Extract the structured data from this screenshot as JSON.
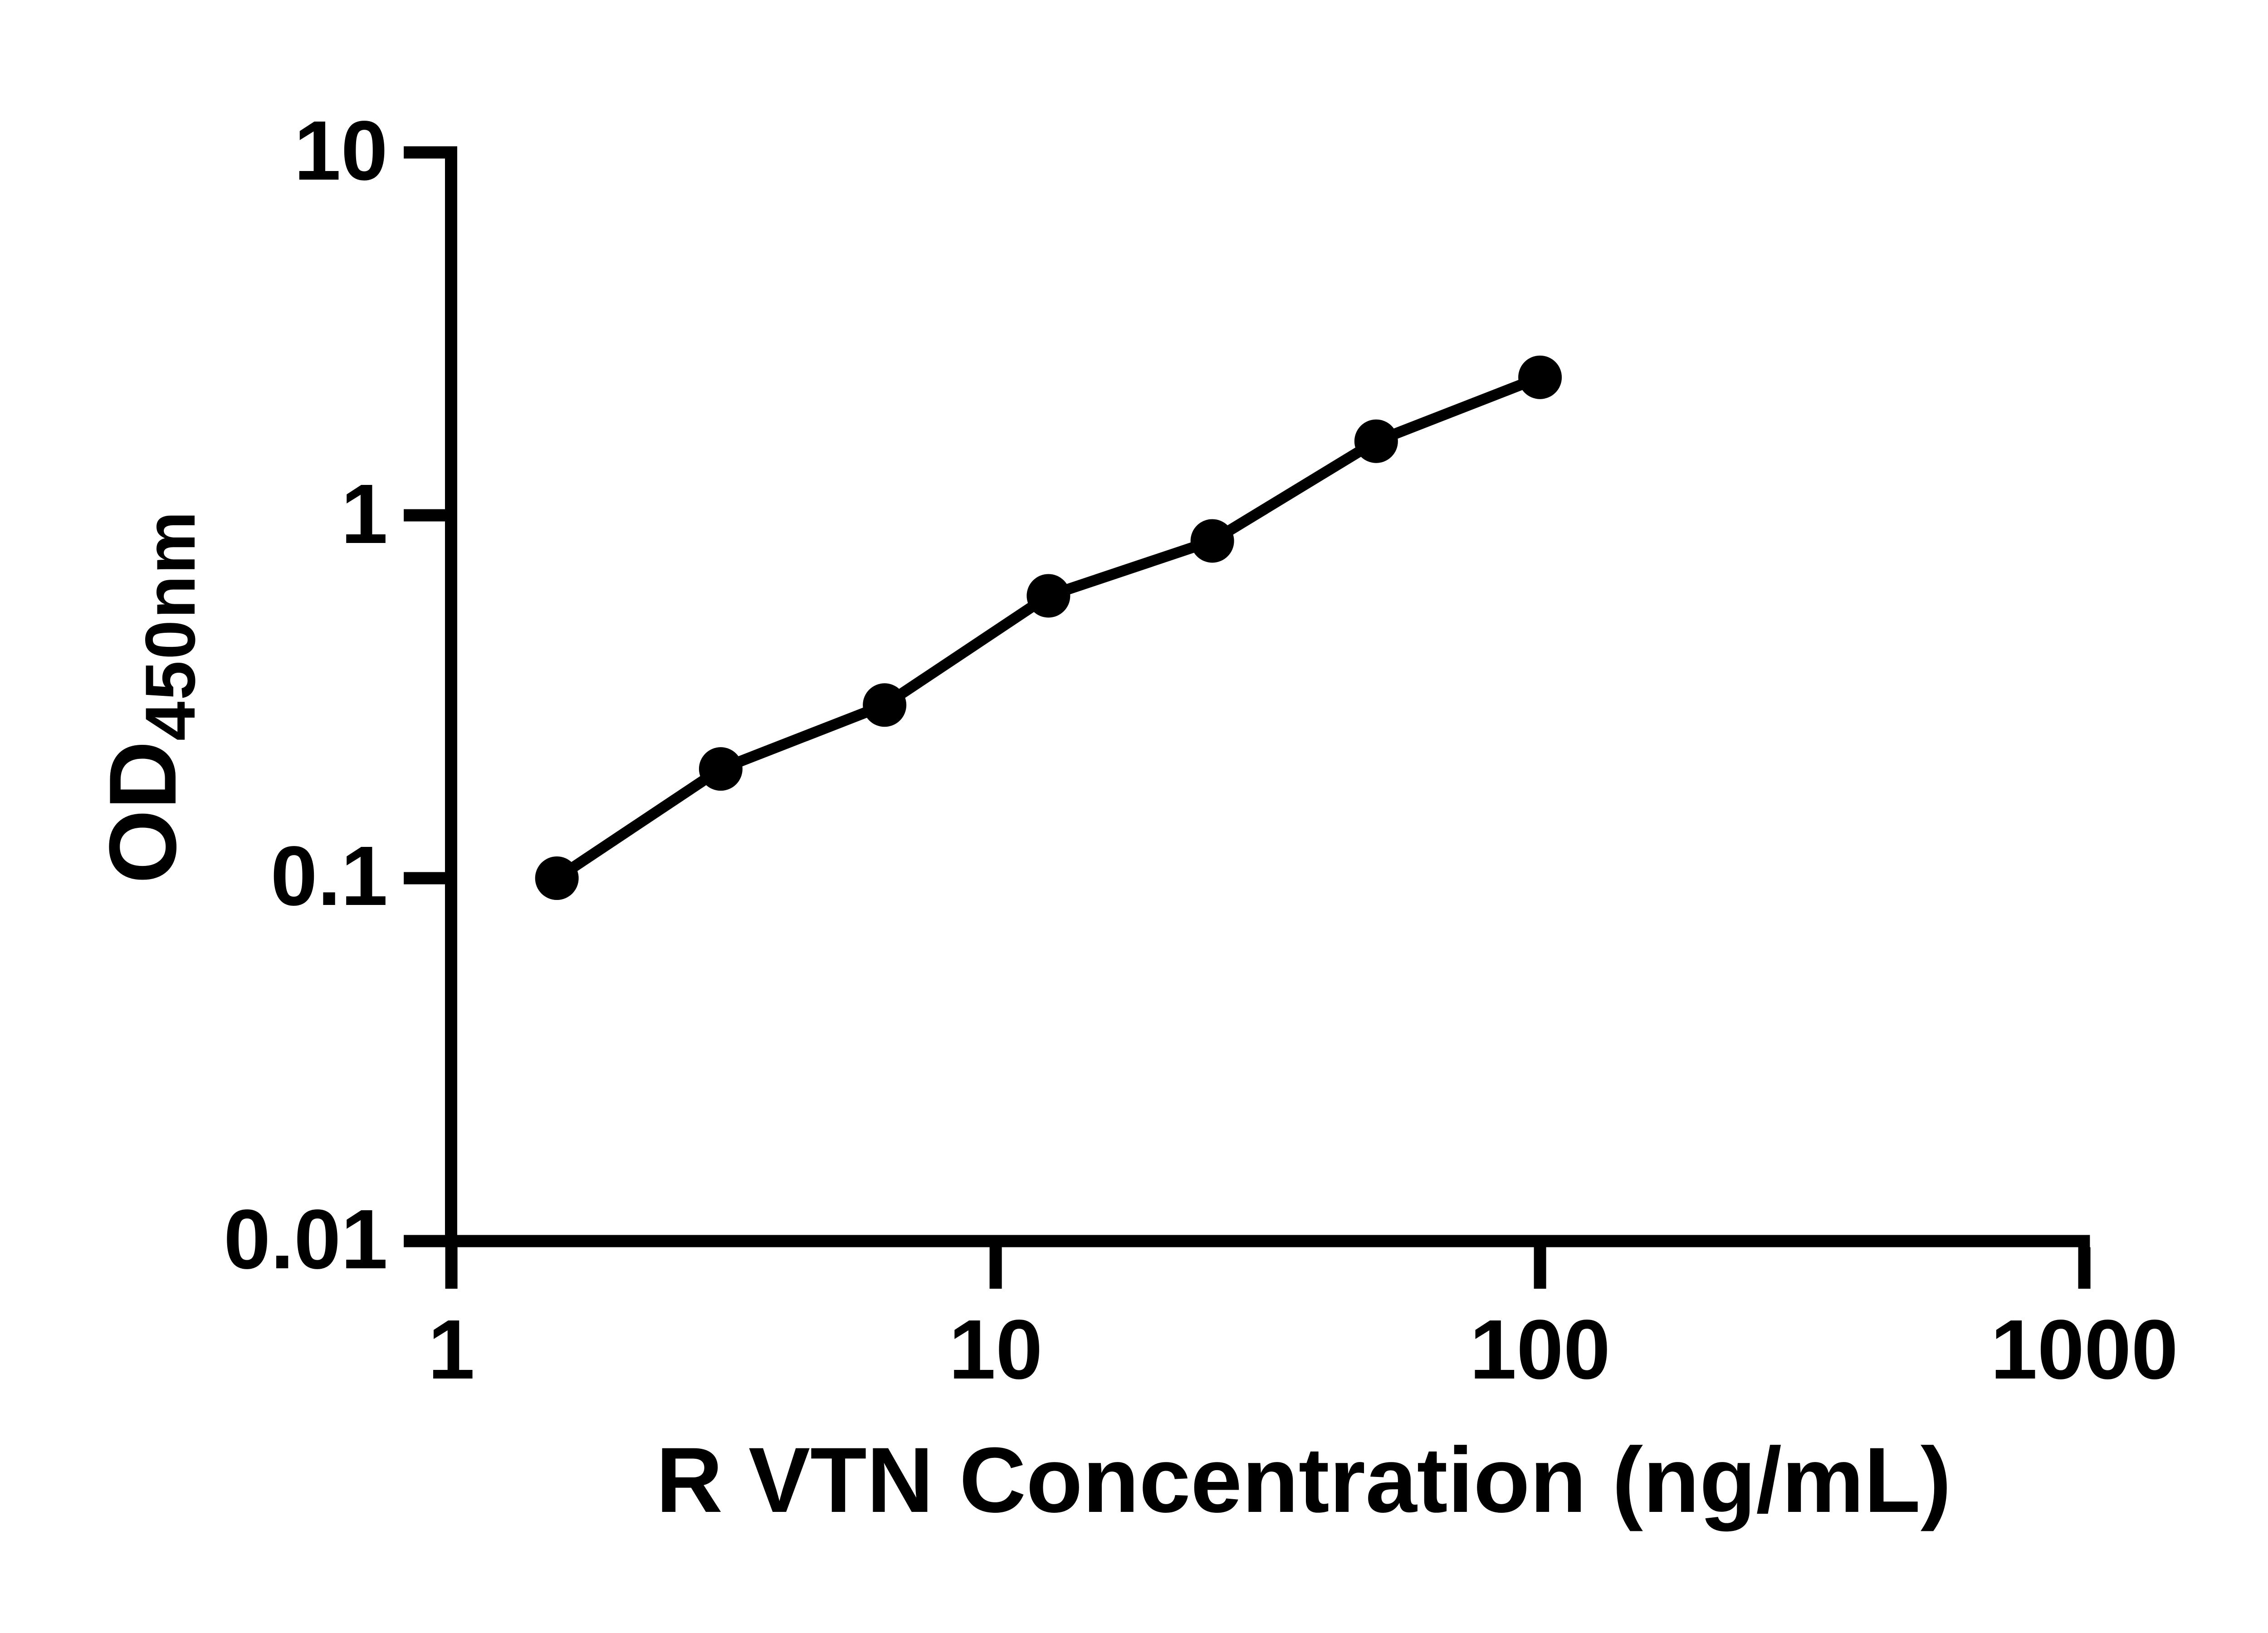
{
  "figure": {
    "background_color": "#ffffff",
    "ink_color": "#000000"
  },
  "chart_data": {
    "type": "scatter",
    "line_style": "connected-segments",
    "marker": "filled-circle",
    "marker_color": "#000000",
    "line_color": "#000000",
    "title": "",
    "xlabel": "R VTN Concentration (ng/mL)",
    "ylabel_main": "OD",
    "ylabel_sub": "450nm",
    "x_scale": "log10",
    "y_scale": "log10",
    "xlim": [
      1,
      1000
    ],
    "ylim": [
      0.01,
      10
    ],
    "grid": "off",
    "legend": "none",
    "x_ticks": [
      {
        "value": 1,
        "label": "1"
      },
      {
        "value": 10,
        "label": "10"
      },
      {
        "value": 100,
        "label": "100"
      },
      {
        "value": 1000,
        "label": "1000"
      }
    ],
    "y_ticks": [
      {
        "value": 10,
        "label": "10"
      },
      {
        "value": 1,
        "label": "1"
      },
      {
        "value": 0.1,
        "label": "0.1"
      },
      {
        "value": 0.01,
        "label": "0.01"
      }
    ],
    "series": [
      {
        "marker": "filled-circle",
        "color": "#000000",
        "points": [
          {
            "x": 1.5625,
            "y": 0.1
          },
          {
            "x": 3.125,
            "y": 0.2
          },
          {
            "x": 6.25,
            "y": 0.3
          },
          {
            "x": 12.5,
            "y": 0.6
          },
          {
            "x": 25,
            "y": 0.85
          },
          {
            "x": 50,
            "y": 1.6
          },
          {
            "x": 100,
            "y": 2.4
          }
        ]
      }
    ]
  }
}
